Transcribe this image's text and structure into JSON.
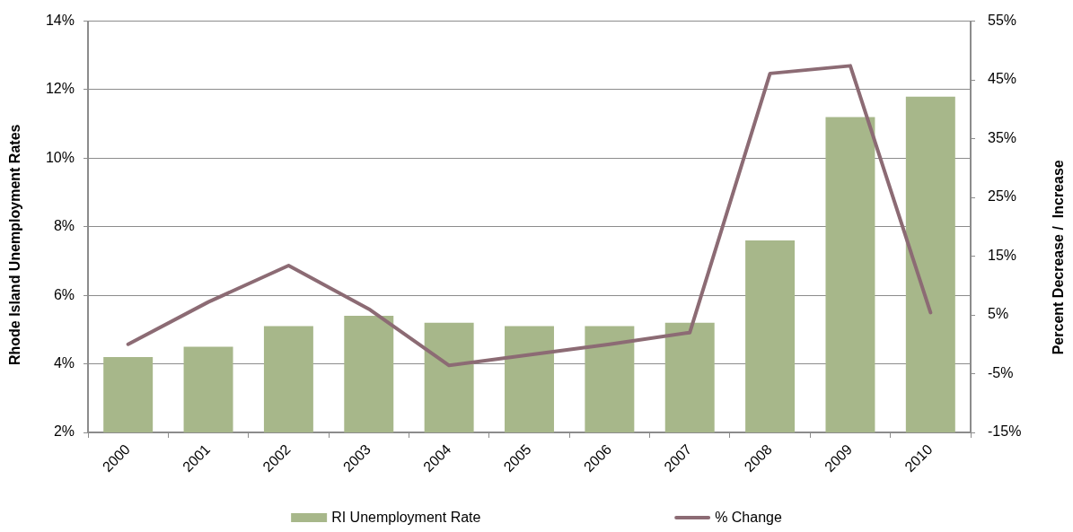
{
  "chart_data": {
    "type": "bar",
    "categories": [
      "2000",
      "2001",
      "2002",
      "2003",
      "2004",
      "2005",
      "2006",
      "2007",
      "2008",
      "2009",
      "2010"
    ],
    "ylabel": "Rhode Island Unemployment Rates",
    "y2label": "Percent Decrease /  Increase",
    "series": [
      {
        "name": "RI Unemployment Rate",
        "color": "#a7b78a",
        "values": [
          4.2,
          4.5,
          5.1,
          5.4,
          5.2,
          5.1,
          5.1,
          5.2,
          7.6,
          11.2,
          11.8
        ]
      },
      {
        "name": "% Change",
        "type": "line",
        "axis": "y2",
        "color": "#8c6b74",
        "values": [
          0.0,
          7.2,
          13.4,
          6.0,
          -3.6,
          -1.8,
          0.0,
          2.0,
          46.1,
          47.4,
          5.4
        ]
      }
    ],
    "ylim": [
      2,
      14
    ],
    "yticks": [
      {
        "value": 2,
        "label": "2%"
      },
      {
        "value": 4,
        "label": "4%"
      },
      {
        "value": 6,
        "label": "6%"
      },
      {
        "value": 8,
        "label": "8%"
      },
      {
        "value": 10,
        "label": "10%"
      },
      {
        "value": 12,
        "label": "12%"
      },
      {
        "value": 14,
        "label": "14%"
      }
    ],
    "y2lim": [
      -15,
      55
    ],
    "y2ticks": [
      {
        "value": -15,
        "label": "-15%"
      },
      {
        "value": -5,
        "label": "-5%"
      },
      {
        "value": 5,
        "label": "5%"
      },
      {
        "value": 15,
        "label": "15%"
      },
      {
        "value": 25,
        "label": "25%"
      },
      {
        "value": 35,
        "label": "35%"
      },
      {
        "value": 45,
        "label": "45%"
      },
      {
        "value": 55,
        "label": "55%"
      }
    ],
    "grid": "y",
    "legend": "bottom",
    "marker": "none"
  }
}
